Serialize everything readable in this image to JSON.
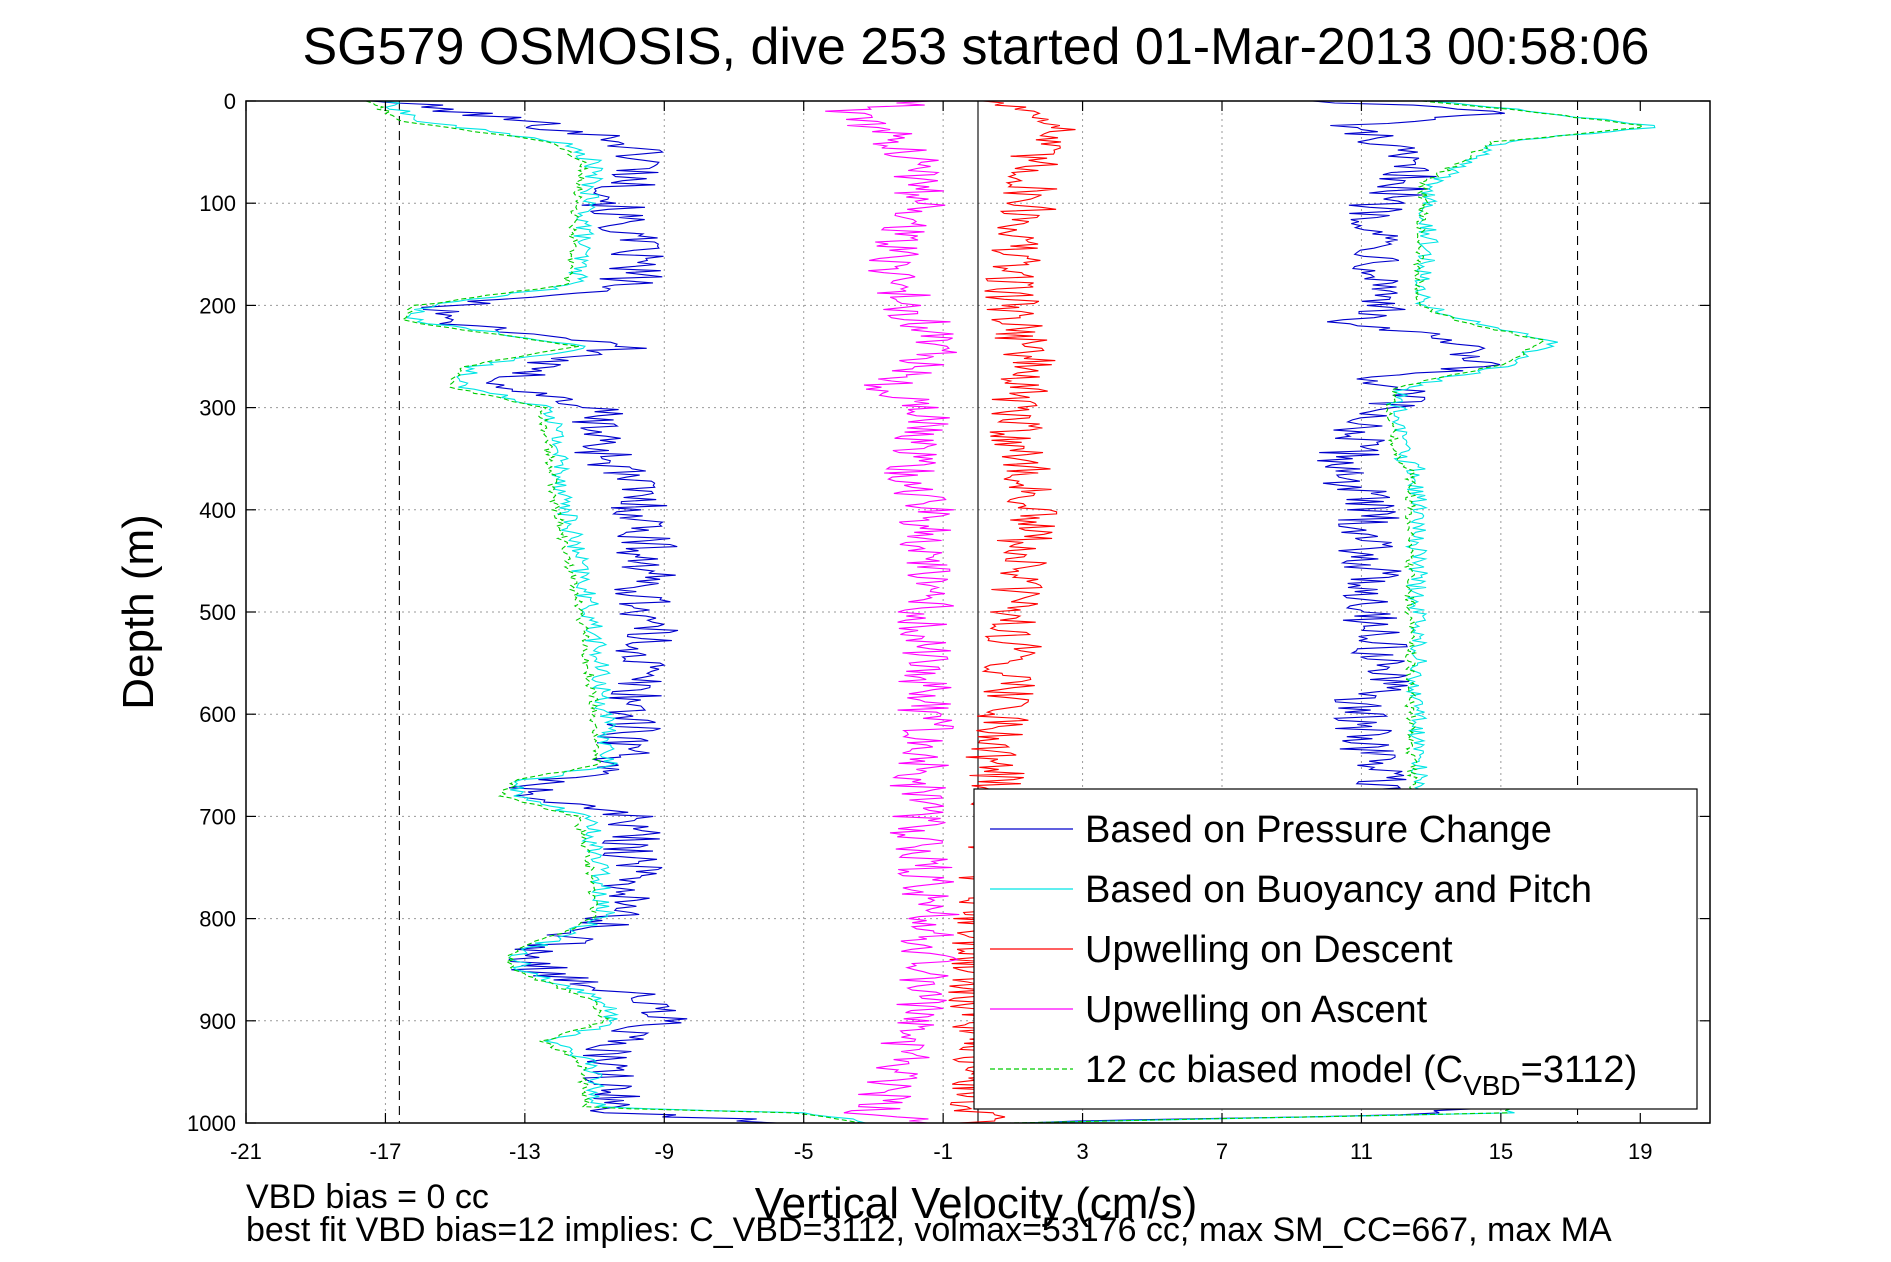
{
  "chart_data": {
    "type": "line",
    "title": "SG579 OSMOSIS, dive 253 started 01-Mar-2013 00:58:06",
    "xlabel": "Vertical Velocity (cm/s)",
    "ylabel": "Depth (m)",
    "xlim": [
      -21,
      21
    ],
    "ylim": [
      0,
      1000
    ],
    "y_reversed": true,
    "grid": true,
    "legend_position": "lower-right",
    "xticks": [
      "-21",
      "-17",
      "-13",
      "-9",
      "-5",
      "-1",
      "3",
      "7",
      "11",
      "15",
      "19"
    ],
    "yticks": [
      "0",
      "100",
      "200",
      "300",
      "400",
      "500",
      "600",
      "700",
      "800",
      "900",
      "1000"
    ],
    "reference_lines": {
      "dashed_x": [
        -16.6,
        17.2
      ],
      "solid_x": [
        0
      ]
    },
    "series": [
      {
        "name": "Based on Pressure Change",
        "color": "#0000cc",
        "style": "solid",
        "descent": {
          "depth": [
            0,
            20,
            40,
            60,
            100,
            150,
            180,
            200,
            215,
            240,
            260,
            280,
            300,
            340,
            380,
            430,
            480,
            520,
            600,
            650,
            665,
            680,
            700,
            760,
            800,
            835,
            850,
            880,
            900,
            920,
            940,
            970,
            990,
            1000
          ],
          "values": [
            -17,
            -13,
            -10,
            -9.5,
            -10.5,
            -9.8,
            -10,
            -15,
            -15.5,
            -10,
            -13,
            -13.5,
            -11,
            -10.8,
            -9.8,
            -9.5,
            -9.6,
            -9.5,
            -9.9,
            -10.2,
            -12.5,
            -12.8,
            -10,
            -9.8,
            -10.5,
            -12.8,
            -12.5,
            -9.5,
            -9,
            -10.6,
            -10.8,
            -10.6,
            -10.3,
            -5
          ]
        },
        "ascent": {
          "depth": [
            0,
            10,
            25,
            40,
            80,
            100,
            150,
            200,
            215,
            235,
            260,
            275,
            285,
            300,
            330,
            360,
            400,
            500,
            560,
            600,
            650,
            700,
            800,
            900,
            990,
            1000
          ],
          "values": [
            10,
            15,
            10.5,
            11.5,
            12.5,
            11.5,
            11.6,
            11.8,
            10.5,
            13.5,
            14.2,
            10.5,
            12.5,
            11.5,
            10.8,
            10.5,
            11.2,
            11.3,
            11.7,
            10.8,
            11.5,
            12.2,
            12.4,
            12.3,
            14,
            1
          ]
        }
      },
      {
        "name": "Based on Buoyancy and Pitch",
        "color": "#00e5e5",
        "style": "solid",
        "descent": {
          "depth": [
            0,
            20,
            40,
            60,
            100,
            180,
            200,
            215,
            240,
            260,
            280,
            300,
            400,
            520,
            600,
            650,
            665,
            680,
            700,
            760,
            800,
            835,
            850,
            880,
            900,
            920,
            940,
            985,
            990,
            1000
          ],
          "values": [
            -17,
            -16,
            -12,
            -11,
            -11.2,
            -11.5,
            -15.8,
            -16.2,
            -11.2,
            -14.5,
            -14.8,
            -12.2,
            -11.8,
            -11,
            -10.7,
            -10.6,
            -13,
            -13.3,
            -11.2,
            -10.8,
            -10.7,
            -13.2,
            -13,
            -10.8,
            -10.4,
            -12.2,
            -11.1,
            -10.9,
            -5,
            -3
          ]
        },
        "ascent": {
          "depth": [
            0,
            10,
            25,
            40,
            80,
            200,
            215,
            235,
            260,
            280,
            300,
            350,
            360,
            400,
            600,
            700,
            800,
            900,
            990,
            1000
          ],
          "values": [
            13,
            16,
            19.5,
            15,
            13,
            12.8,
            14,
            16.5,
            15,
            12.2,
            12,
            12.2,
            12.6,
            12.6,
            12.6,
            12.7,
            12.8,
            12.8,
            15.5,
            1
          ]
        }
      },
      {
        "name": "Upwelling on Descent",
        "color": "#ff0000",
        "style": "solid",
        "depth": [
          0,
          20,
          50,
          100,
          150,
          200,
          250,
          300,
          400,
          500,
          580,
          640,
          700,
          800,
          900,
          985,
          1000
        ],
        "values": [
          0.5,
          2.5,
          1.5,
          1.5,
          1,
          1,
          1.5,
          1,
          1.5,
          1,
          1,
          0.5,
          0.5,
          0,
          0,
          0,
          0
        ]
      },
      {
        "name": "Upwelling on Ascent",
        "color": "#ff00ff",
        "style": "solid",
        "depth": [
          0,
          10,
          25,
          50,
          100,
          150,
          200,
          240,
          280,
          300,
          350,
          400,
          500,
          600,
          700,
          800,
          900,
          990,
          1000
        ],
        "values": [
          -1,
          -4,
          -3,
          -2,
          -1.5,
          -2.5,
          -2,
          -1,
          -2.5,
          -1.5,
          -2,
          -1.5,
          -1.5,
          -1.5,
          -1.8,
          -1.3,
          -1.6,
          -3,
          -1
        ]
      },
      {
        "name": "12 cc biased model (C_VBD=3112)",
        "label_main": "12 cc biased model (C",
        "label_sub": "VBD",
        "label_tail": "=3112)",
        "color": "#00cc00",
        "style": "dashed",
        "descent": {
          "depth": [
            0,
            20,
            40,
            60,
            100,
            180,
            200,
            215,
            240,
            260,
            280,
            300,
            400,
            520,
            600,
            650,
            665,
            680,
            700,
            760,
            800,
            835,
            850,
            880,
            900,
            920,
            940,
            985,
            990,
            1000
          ],
          "values": [
            -17.5,
            -16.5,
            -12.3,
            -11.3,
            -11.5,
            -11.8,
            -16.1,
            -16.5,
            -11.5,
            -14.8,
            -15.1,
            -12.5,
            -12.1,
            -11.3,
            -11,
            -10.9,
            -13.3,
            -13.6,
            -11.5,
            -11.1,
            -11,
            -13.5,
            -13.3,
            -11.1,
            -10.7,
            -12.5,
            -11.4,
            -11.2,
            -5.3,
            -3.3
          ]
        },
        "ascent": {
          "depth": [
            0,
            10,
            25,
            40,
            80,
            200,
            215,
            235,
            260,
            280,
            300,
            350,
            360,
            400,
            600,
            700,
            800,
            900,
            990,
            1000
          ],
          "values": [
            12.8,
            15.8,
            19.3,
            14.8,
            12.8,
            12.6,
            13.8,
            16.3,
            14.8,
            12,
            11.8,
            12,
            12.4,
            12.4,
            12.4,
            12.5,
            12.6,
            12.6,
            15.3,
            0.8
          ]
        }
      }
    ]
  },
  "footer": {
    "line1": "VBD bias = 0 cc",
    "line2": "best fit VBD bias=12 implies: C_VBD=3112, volmax=53176 cc, max SM_CC=667, max MA"
  }
}
